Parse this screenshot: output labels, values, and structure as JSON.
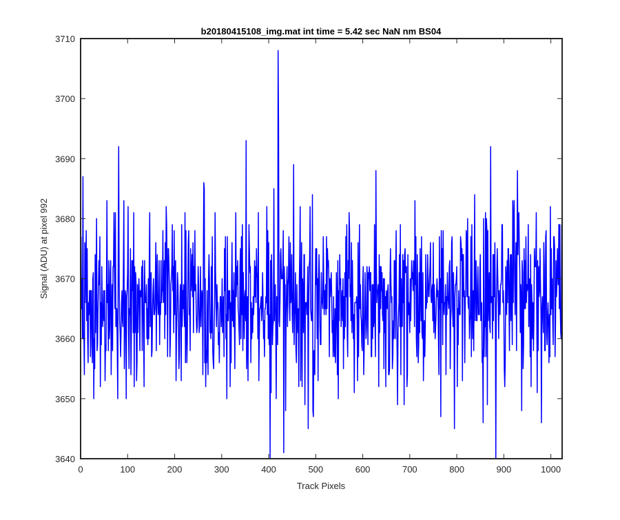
{
  "chart_data": {
    "type": "line",
    "title": "b20180415108_img.mat int time = 5.42 sec  NaN nm BS04",
    "xlabel": "Track Pixels",
    "ylabel": "Signal (ADU) at pixel 992",
    "xlim": [
      0,
      1024
    ],
    "ylim": [
      3640,
      3710
    ],
    "xticks": [
      "0",
      "100",
      "200",
      "300",
      "400",
      "500",
      "600",
      "700",
      "800",
      "900",
      "1000"
    ],
    "yticks": [
      "3640",
      "3650",
      "3660",
      "3670",
      "3680",
      "3690",
      "3700",
      "3710"
    ],
    "grid": false,
    "series": [
      {
        "color": "#0000ff",
        "mean": 3666.3,
        "std": 7.2,
        "n_points": 1024,
        "notable_points": [
          {
            "x": 81,
            "y": 3692
          },
          {
            "x": 262,
            "y": 3686
          },
          {
            "x": 352,
            "y": 3693
          },
          {
            "x": 403,
            "y": 3640
          },
          {
            "x": 420,
            "y": 3708
          },
          {
            "x": 421,
            "y": 3696
          },
          {
            "x": 432,
            "y": 3641
          },
          {
            "x": 628,
            "y": 3688
          },
          {
            "x": 872,
            "y": 3692
          },
          {
            "x": 883,
            "y": 3640
          }
        ]
      }
    ]
  }
}
